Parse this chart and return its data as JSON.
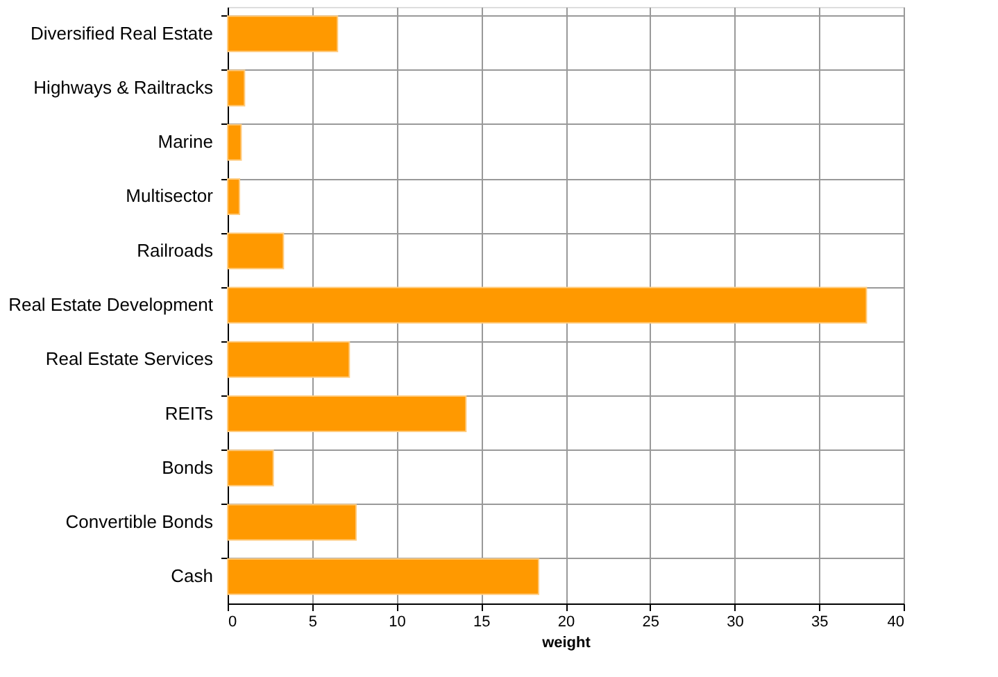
{
  "chart_data": {
    "type": "bar",
    "orientation": "horizontal",
    "xlabel": "weight",
    "categories": [
      "Diversified Real Estate",
      "Highways & Railtracks",
      "Marine",
      "Multisector",
      "Railroads",
      "Real Estate Development",
      "Real Estate Services",
      "REITs",
      "Bonds",
      "Convertible Bonds",
      "Cash"
    ],
    "values": [
      6.5,
      1.0,
      0.8,
      0.7,
      3.3,
      37.8,
      7.2,
      14.1,
      2.7,
      7.6,
      18.4
    ],
    "color": "#ff9900",
    "xlim": [
      0,
      40
    ],
    "xticks": [
      0,
      5,
      10,
      15,
      20,
      25,
      30,
      35,
      40
    ],
    "grid": true
  }
}
